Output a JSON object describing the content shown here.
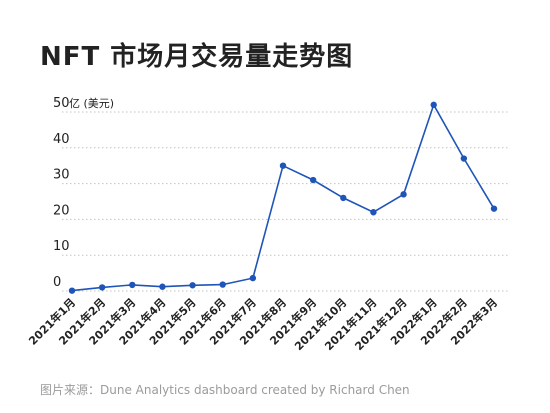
{
  "title": "NFT 市场月交易量走势图",
  "source": "图片来源：Dune Analytics dashboard created by Richard Chen",
  "chart_data": {
    "type": "line",
    "title": "NFT 市场月交易量走势图",
    "ylabel": "",
    "yunit": "亿 (美元)",
    "xlabel": "",
    "ylim": [
      0,
      52
    ],
    "yticks": [
      0,
      10,
      20,
      30,
      40,
      50
    ],
    "grid": true,
    "color": "#1f55b8",
    "categories": [
      "2021年1月",
      "2021年2月",
      "2021年3月",
      "2021年4月",
      "2021年5月",
      "2021年6月",
      "2021年7月",
      "2021年8月",
      "2021年9月",
      "2021年10月",
      "2021年11月",
      "2021年12月",
      "2022年1月",
      "2022年2月",
      "2022年3月"
    ],
    "series": [
      {
        "values": [
          0.1,
          1.0,
          1.7,
          1.2,
          1.6,
          1.8,
          3.6,
          35,
          31,
          26,
          22,
          27,
          52,
          37,
          23
        ]
      }
    ]
  }
}
